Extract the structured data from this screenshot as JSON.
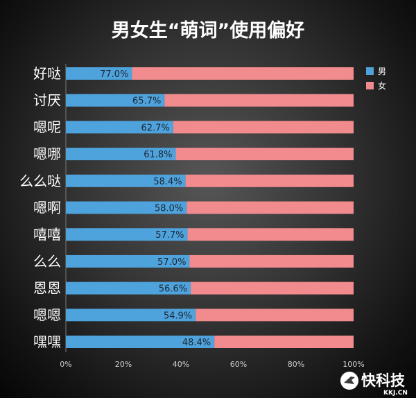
{
  "chart_data": {
    "type": "bar",
    "orientation": "horizontal",
    "stacked": true,
    "title": "男女生“萌词”使用偏好",
    "categories": [
      "好哒",
      "讨厌",
      "嗯呢",
      "嗯哪",
      "么么哒",
      "嗯啊",
      "嘻嘻",
      "么么",
      "恩恩",
      "嗯嗯",
      "嘿嘿"
    ],
    "series": [
      {
        "name": "男",
        "color": "#4fa3dc",
        "values": [
          23.0,
          34.3,
          37.3,
          38.2,
          41.6,
          42.0,
          42.3,
          43.0,
          43.4,
          45.1,
          51.6
        ]
      },
      {
        "name": "女",
        "color": "#f28b8e",
        "values": [
          77.0,
          65.7,
          62.7,
          61.8,
          58.4,
          58.0,
          57.7,
          57.0,
          56.6,
          54.9,
          48.4
        ]
      }
    ],
    "data_labels": [
      "77.0%",
      "65.7%",
      "62.7%",
      "61.8%",
      "58.4%",
      "58.0%",
      "57.7%",
      "57.0%",
      "56.6%",
      "54.9%",
      "48.4%"
    ],
    "x_ticks": [
      "0%",
      "20%",
      "40%",
      "60%",
      "80%",
      "100%"
    ],
    "xlim": [
      0,
      100
    ],
    "grid": false,
    "legend": "top-right"
  },
  "watermark": {
    "brand": "快科技",
    "domain": "KKJ.CN"
  }
}
